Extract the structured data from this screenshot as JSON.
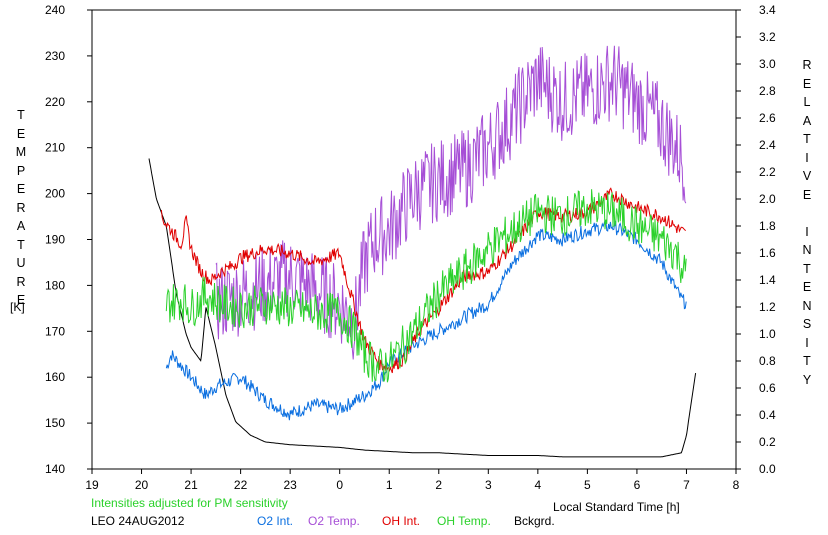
{
  "chart_data": {
    "type": "line",
    "title": "LEO 24AUG2012",
    "note": "Intensities adjusted for PM sensitivity",
    "xlabel": "Local Standard Time [h]",
    "ylabel_left": "TEMPERATURE",
    "ylabel_left_unit": "[K]",
    "ylabel_right": "RELATIVE INTENSITY",
    "x_ticks": [
      "19",
      "20",
      "21",
      "22",
      "23",
      "0",
      "1",
      "2",
      "3",
      "4",
      "5",
      "6",
      "7",
      "8"
    ],
    "xlim": [
      19,
      32
    ],
    "ylim_left": [
      140,
      240
    ],
    "y_ticks_left": [
      "140",
      "150",
      "160",
      "170",
      "180",
      "190",
      "200",
      "210",
      "220",
      "230",
      "240"
    ],
    "ylim_right": [
      0.0,
      3.4
    ],
    "y_ticks_right": [
      "0.0",
      "0.2",
      "0.4",
      "0.6",
      "0.8",
      "1.0",
      "1.2",
      "1.4",
      "1.6",
      "1.8",
      "2.0",
      "2.2",
      "2.4",
      "2.6",
      "2.8",
      "3.0",
      "3.2",
      "3.4"
    ],
    "grid": false,
    "legend": [
      {
        "label": "O2 Int.",
        "color": "#0b6fe0"
      },
      {
        "label": "O2 Temp.",
        "color": "#a64fd6"
      },
      {
        "label": "OH Int.",
        "color": "#e00000"
      },
      {
        "label": "OH Temp.",
        "color": "#2bd12b"
      },
      {
        "label": "Bckgrd.",
        "color": "#000000"
      }
    ],
    "series": [
      {
        "name": "Bckgrd.",
        "color": "#000000",
        "axis": "right",
        "noise": 0.0,
        "x": [
          20.15,
          20.3,
          20.5,
          20.7,
          20.9,
          21.0,
          21.1,
          21.2,
          21.3,
          21.5,
          21.7,
          21.9,
          22.2,
          22.5,
          23.0,
          23.5,
          24.0,
          24.5,
          25.0,
          25.5,
          26.0,
          26.5,
          27.0,
          27.5,
          28.0,
          28.5,
          29.0,
          29.5,
          30.0,
          30.5,
          30.9,
          31.0,
          31.1,
          31.2
        ],
        "y": [
          2.3,
          2.0,
          1.8,
          1.3,
          1.0,
          0.9,
          0.85,
          0.8,
          1.2,
          0.9,
          0.55,
          0.35,
          0.25,
          0.2,
          0.18,
          0.17,
          0.16,
          0.14,
          0.13,
          0.12,
          0.12,
          0.11,
          0.1,
          0.1,
          0.1,
          0.09,
          0.09,
          0.09,
          0.09,
          0.09,
          0.12,
          0.25,
          0.5,
          0.75
        ]
      },
      {
        "name": "O2 Int.",
        "color": "#0b6fe0",
        "axis": "left",
        "noise": 1.5,
        "x": [
          20.5,
          20.6,
          21.0,
          21.3,
          21.5,
          22.0,
          22.5,
          23.0,
          23.5,
          24.0,
          24.5,
          24.8,
          25.0,
          25.5,
          26.0,
          26.5,
          27.0,
          27.5,
          28.0,
          28.5,
          29.0,
          29.5,
          30.0,
          30.5,
          30.9,
          31.0
        ],
        "y": [
          162,
          165,
          160,
          156,
          158,
          160,
          155,
          152,
          154,
          153,
          156,
          159,
          163,
          167,
          170,
          173,
          176,
          185,
          191,
          190,
          192,
          193,
          190,
          185,
          177,
          176
        ]
      },
      {
        "name": "O2 Temp.",
        "color": "#a64fd6",
        "axis": "left",
        "noise": 9,
        "x": [
          21.5,
          22.0,
          22.5,
          23.0,
          23.5,
          24.0,
          24.3,
          24.5,
          24.7,
          25.0,
          25.5,
          26.0,
          26.5,
          27.0,
          27.5,
          28.0,
          28.5,
          29.0,
          29.5,
          30.0,
          30.5,
          30.9,
          31.0
        ],
        "y": [
          176,
          178,
          180,
          182,
          179,
          176,
          172,
          185,
          190,
          192,
          200,
          203,
          205,
          210,
          217,
          225,
          220,
          222,
          225,
          220,
          215,
          208,
          206
        ]
      },
      {
        "name": "OH Int.",
        "color": "#e00000",
        "axis": "left",
        "noise": 1.5,
        "x": [
          20.4,
          20.6,
          20.8,
          20.9,
          21.0,
          21.2,
          21.4,
          21.6,
          21.8,
          22.0,
          22.5,
          23.0,
          23.5,
          24.0,
          24.2,
          24.5,
          24.8,
          25.0,
          25.3,
          25.6,
          26.0,
          26.5,
          27.0,
          27.5,
          28.0,
          28.5,
          29.0,
          29.5,
          30.0,
          30.5,
          31.0
        ],
        "y": [
          195,
          192,
          189,
          194,
          188,
          183,
          181,
          183,
          184,
          186,
          188,
          187,
          185,
          187,
          179,
          168,
          163,
          162,
          164,
          170,
          175,
          182,
          183,
          189,
          196,
          195,
          196,
          200,
          197,
          195,
          191
        ]
      },
      {
        "name": "OH Temp.",
        "color": "#2bd12b",
        "axis": "left",
        "noise": 4.5,
        "x": [
          20.5,
          20.8,
          21.0,
          21.3,
          21.6,
          22.0,
          22.5,
          23.0,
          23.5,
          24.0,
          24.3,
          24.5,
          24.8,
          25.0,
          25.5,
          26.0,
          26.5,
          27.0,
          27.5,
          28.0,
          28.5,
          29.0,
          29.5,
          30.0,
          30.5,
          30.8,
          31.0
        ],
        "y": [
          176,
          177,
          175,
          178,
          176,
          175,
          176,
          175,
          174,
          174,
          170,
          165,
          162,
          163,
          170,
          178,
          183,
          188,
          192,
          196,
          195,
          197,
          196,
          193,
          190,
          187,
          182
        ]
      }
    ]
  }
}
